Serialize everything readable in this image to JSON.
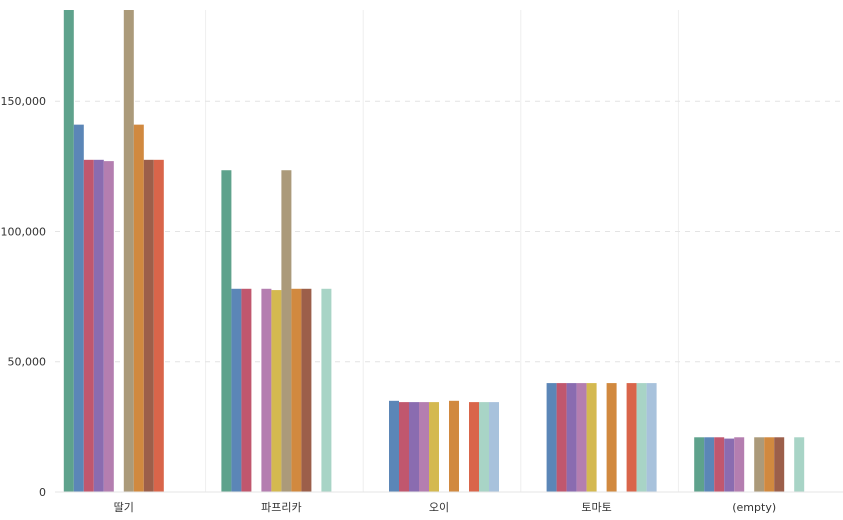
{
  "chart_data": {
    "type": "bar",
    "categories": [
      "딸기",
      "파프리카",
      "오이",
      "토마토",
      "(empty)"
    ],
    "ylim": [
      0,
      185000
    ],
    "yticks": [
      0,
      50000,
      100000,
      150000
    ],
    "ytick_labels": [
      "0",
      "50,000",
      "100,000",
      "150,000"
    ],
    "grid": "horizontal dashed",
    "legend": "none",
    "series": [
      {
        "color": "#5ea28c",
        "values": [
          185000,
          123500,
          null,
          null,
          21000
        ]
      },
      {
        "color": "#5b86b7",
        "values": [
          141000,
          78000,
          35000,
          41800,
          21000
        ]
      },
      {
        "color": "#c0576e",
        "values": [
          127500,
          78000,
          34500,
          41800,
          21000
        ]
      },
      {
        "color": "#8a6cb0",
        "values": [
          127500,
          null,
          34500,
          41800,
          20500
        ]
      },
      {
        "color": "#b47eb0",
        "values": [
          127000,
          78000,
          34500,
          41800,
          21000
        ]
      },
      {
        "color": "#d4b950",
        "values": [
          null,
          77500,
          34500,
          41800,
          null
        ]
      },
      {
        "color": "#ab9a7a",
        "values": [
          185000,
          123500,
          null,
          null,
          21000
        ]
      },
      {
        "color": "#d1893f",
        "values": [
          141000,
          78000,
          35000,
          41800,
          21000
        ]
      },
      {
        "color": "#9c5f4a",
        "values": [
          127500,
          78000,
          null,
          null,
          21000
        ]
      },
      {
        "color": "#d9654a",
        "values": [
          127500,
          null,
          34500,
          41800,
          null
        ]
      },
      {
        "color": "#a8d4c6",
        "values": [
          null,
          78000,
          34500,
          41800,
          21000
        ]
      },
      {
        "color": "#a8c2dc",
        "values": [
          null,
          null,
          34500,
          41800,
          null
        ]
      }
    ]
  }
}
